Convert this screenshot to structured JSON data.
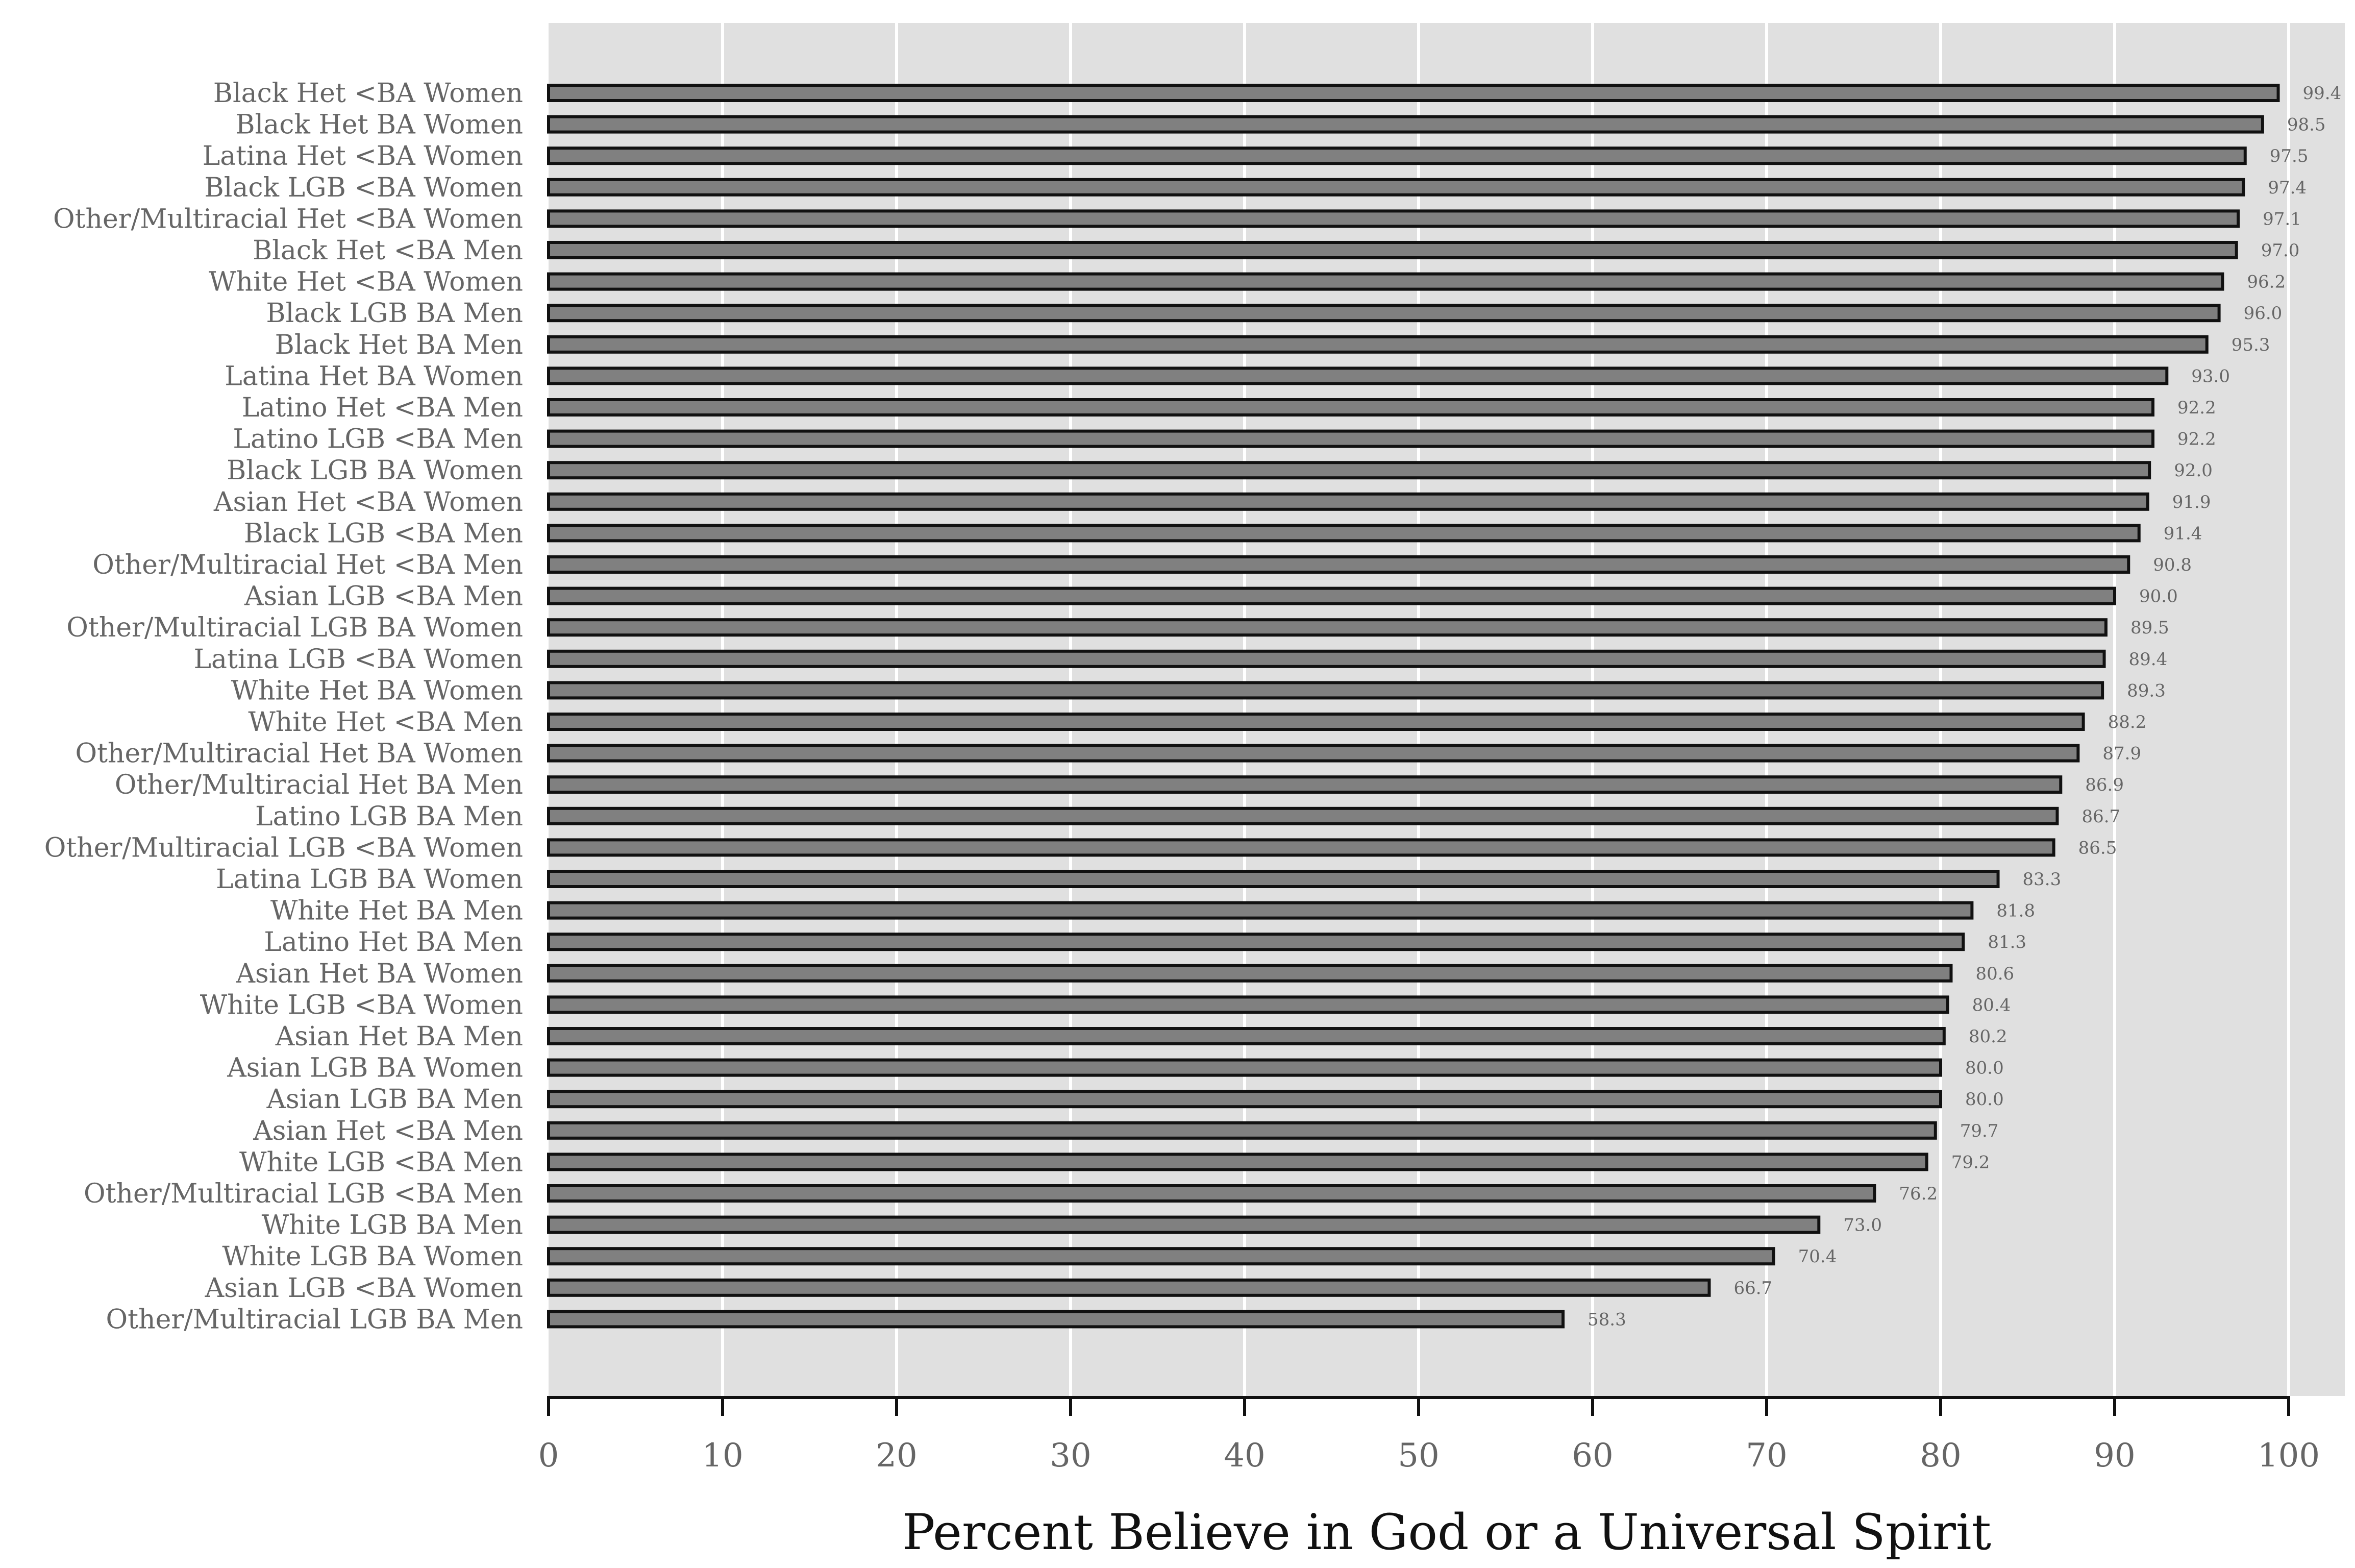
{
  "chart_data": {
    "type": "bar",
    "orientation": "horizontal",
    "xlabel": "Percent Believe in God or a Universal Spirit",
    "xlim": [
      0,
      103
    ],
    "xticks": [
      0,
      10,
      20,
      30,
      40,
      50,
      60,
      70,
      80,
      90,
      100
    ],
    "grid": true,
    "colors": {
      "panel": "#e0e0e0",
      "grid": "#ffffff",
      "bar_fill": "#808080",
      "bar_stroke": "#111111",
      "axis": "#111111",
      "text": "#666666"
    },
    "categories": [
      "Black Het <BA Women",
      "Black Het BA Women",
      "Latina Het <BA Women",
      "Black LGB <BA Women",
      "Other/Multiracial Het <BA Women",
      "Black Het <BA Men",
      "White Het <BA Women",
      "Black LGB BA Men",
      "Black Het BA Men",
      "Latina Het BA Women",
      "Latino Het <BA Men",
      "Latino LGB <BA Men",
      "Black LGB BA Women",
      "Asian Het <BA Women",
      "Black LGB <BA Men",
      "Other/Multiracial Het <BA Men",
      "Asian LGB <BA Men",
      "Other/Multiracial LGB BA Women",
      "Latina LGB <BA Women",
      "White Het BA Women",
      "White Het <BA Men",
      "Other/Multiracial Het BA Women",
      "Other/Multiracial Het BA Men",
      "Latino LGB BA Men",
      "Other/Multiracial LGB <BA Women",
      "Latina LGB BA Women",
      "White Het BA Men",
      "Latino Het BA Men",
      "Asian Het BA Women",
      "White LGB <BA Women",
      "Asian Het BA Men",
      "Asian LGB BA Women",
      "Asian LGB BA Men",
      "Asian Het <BA Men",
      "White LGB <BA Men",
      "Other/Multiracial LGB <BA Men",
      "White LGB BA Men",
      "White LGB BA Women",
      "Asian LGB <BA Women",
      "Other/Multiracial LGB BA Men"
    ],
    "values": [
      99.4,
      98.5,
      97.5,
      97.4,
      97.1,
      97.0,
      96.2,
      96.0,
      95.3,
      93.0,
      92.2,
      92.2,
      92.0,
      91.9,
      91.4,
      90.8,
      90.0,
      89.5,
      89.4,
      89.3,
      88.2,
      87.9,
      86.9,
      86.7,
      86.5,
      83.3,
      81.8,
      81.3,
      80.6,
      80.4,
      80.2,
      80.0,
      80.0,
      79.7,
      79.2,
      76.2,
      73.0,
      70.4,
      66.7,
      58.3
    ],
    "value_labels": [
      "99.4",
      "98.5",
      "97.5",
      "97.4",
      "97.1",
      "97.0",
      "96.2",
      "96.0",
      "95.3",
      "93.0",
      "92.2",
      "92.2",
      "92.0",
      "91.9",
      "91.4",
      "90.8",
      "90.0",
      "89.5",
      "89.4",
      "89.3",
      "88.2",
      "87.9",
      "86.9",
      "86.7",
      "86.5",
      "83.3",
      "81.8",
      "81.3",
      "80.6",
      "80.4",
      "80.2",
      "80.0",
      "80.0",
      "79.7",
      "79.2",
      "76.2",
      "73.0",
      "70.4",
      "66.7",
      "58.3"
    ]
  }
}
